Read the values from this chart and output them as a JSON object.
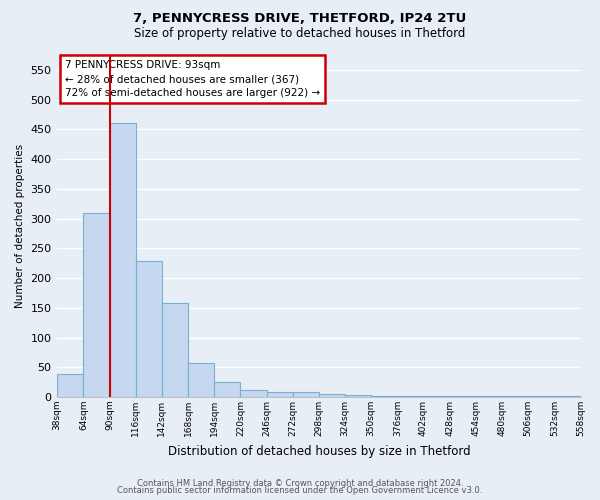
{
  "title1": "7, PENNYCRESS DRIVE, THETFORD, IP24 2TU",
  "title2": "Size of property relative to detached houses in Thetford",
  "xlabel": "Distribution of detached houses by size in Thetford",
  "ylabel": "Number of detached properties",
  "bar_values": [
    38,
    310,
    460,
    228,
    158,
    57,
    25,
    12,
    9,
    8,
    5,
    3,
    2,
    2,
    1,
    1,
    1,
    1,
    1,
    1
  ],
  "bin_labels": [
    "38sqm",
    "64sqm",
    "90sqm",
    "116sqm",
    "142sqm",
    "168sqm",
    "194sqm",
    "220sqm",
    "246sqm",
    "272sqm",
    "298sqm",
    "324sqm",
    "350sqm",
    "376sqm",
    "402sqm",
    "428sqm",
    "454sqm",
    "480sqm",
    "506sqm",
    "532sqm",
    "558sqm"
  ],
  "bar_color": "#c5d8f0",
  "bar_edge_color": "#7aafd4",
  "vline_bar_index": 2,
  "annotation_line1": "7 PENNYCRESS DRIVE: 93sqm",
  "annotation_line2": "← 28% of detached houses are smaller (367)",
  "annotation_line3": "72% of semi-detached houses are larger (922) →",
  "annotation_box_color": "#ffffff",
  "annotation_box_edge_color": "#cc0000",
  "vline_color": "#cc0000",
  "ylim": [
    0,
    575
  ],
  "yticks": [
    0,
    50,
    100,
    150,
    200,
    250,
    300,
    350,
    400,
    450,
    500,
    550
  ],
  "footer1": "Contains HM Land Registry data © Crown copyright and database right 2024.",
  "footer2": "Contains public sector information licensed under the Open Government Licence v3.0.",
  "bg_color": "#e8eef5",
  "grid_color": "#ffffff",
  "axis_bg_color": "#dde6f0"
}
